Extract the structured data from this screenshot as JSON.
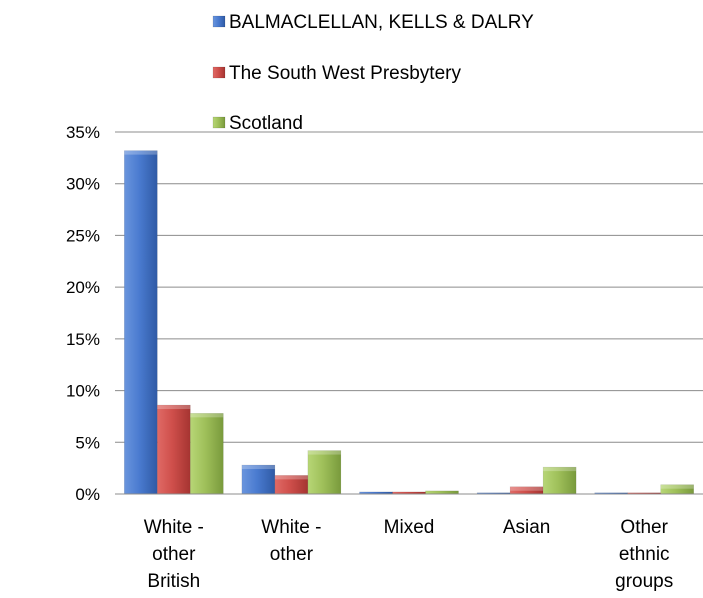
{
  "chart_data": {
    "type": "bar",
    "title": "",
    "xlabel": "",
    "ylabel": "",
    "categories": [
      [
        "White -",
        "other",
        "British"
      ],
      [
        "White -",
        "other"
      ],
      [
        "Mixed"
      ],
      [
        "Asian"
      ],
      [
        "Other",
        "ethnic",
        "groups"
      ]
    ],
    "series": [
      {
        "name": "BALMACLELLAN, KELLS & DALRY",
        "color": "#4472C4",
        "values": [
          33.2,
          2.8,
          0.2,
          0.1,
          0.0
        ]
      },
      {
        "name": "The South West Presbytery",
        "color": "#C0504D",
        "values": [
          8.6,
          1.8,
          0.2,
          0.7,
          0.1
        ]
      },
      {
        "name": "Scotland",
        "color": "#9BBB59",
        "values": [
          7.8,
          4.2,
          0.3,
          2.6,
          0.9
        ]
      }
    ],
    "ylim": [
      0,
      35
    ],
    "yticks": [
      0,
      5,
      10,
      15,
      20,
      25,
      30,
      35
    ],
    "ytick_labels": [
      "0%",
      "5%",
      "10%",
      "15%",
      "20%",
      "25%",
      "30%",
      "35%"
    ],
    "grid": true,
    "legend_position": "top"
  }
}
